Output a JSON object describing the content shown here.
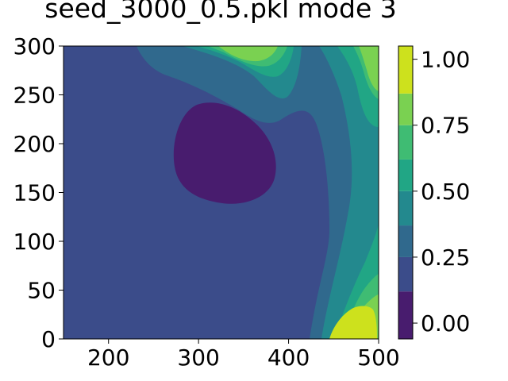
{
  "chart_data": {
    "type": "contour",
    "title": "seed_3000_0.5.pkl mode 3",
    "xlabel": "",
    "ylabel": "",
    "xlim": [
      150,
      500
    ],
    "ylim": [
      0,
      300
    ],
    "x_ticks": [
      "200",
      "300",
      "400",
      "500"
    ],
    "y_ticks": [
      "0",
      "50",
      "100",
      "150",
      "200",
      "250",
      "300"
    ],
    "colorbar": {
      "range": [
        -0.06,
        1.05
      ],
      "levels": [
        -0.06,
        0.12,
        0.25,
        0.37,
        0.5,
        0.62,
        0.75,
        0.87,
        1.05
      ],
      "colors": [
        "#481c6e",
        "#3b4c8a",
        "#30698d",
        "#23898e",
        "#21a685",
        "#3fbc73",
        "#7ad151",
        "#cde11d"
      ],
      "ticks": [
        "0.00",
        "0.25",
        "0.50",
        "0.75",
        "1.00"
      ]
    },
    "features": [
      {
        "type": "min",
        "x": 310,
        "y": 190,
        "value": 0.05
      },
      {
        "type": "max",
        "x": 475,
        "y": 10,
        "value": 1.0
      },
      {
        "type": "max",
        "x": 490,
        "y": 250,
        "value": 0.8
      },
      {
        "type": "max",
        "x": 320,
        "y": 310,
        "value": 0.8
      }
    ],
    "grid": false,
    "colormap": "viridis"
  }
}
